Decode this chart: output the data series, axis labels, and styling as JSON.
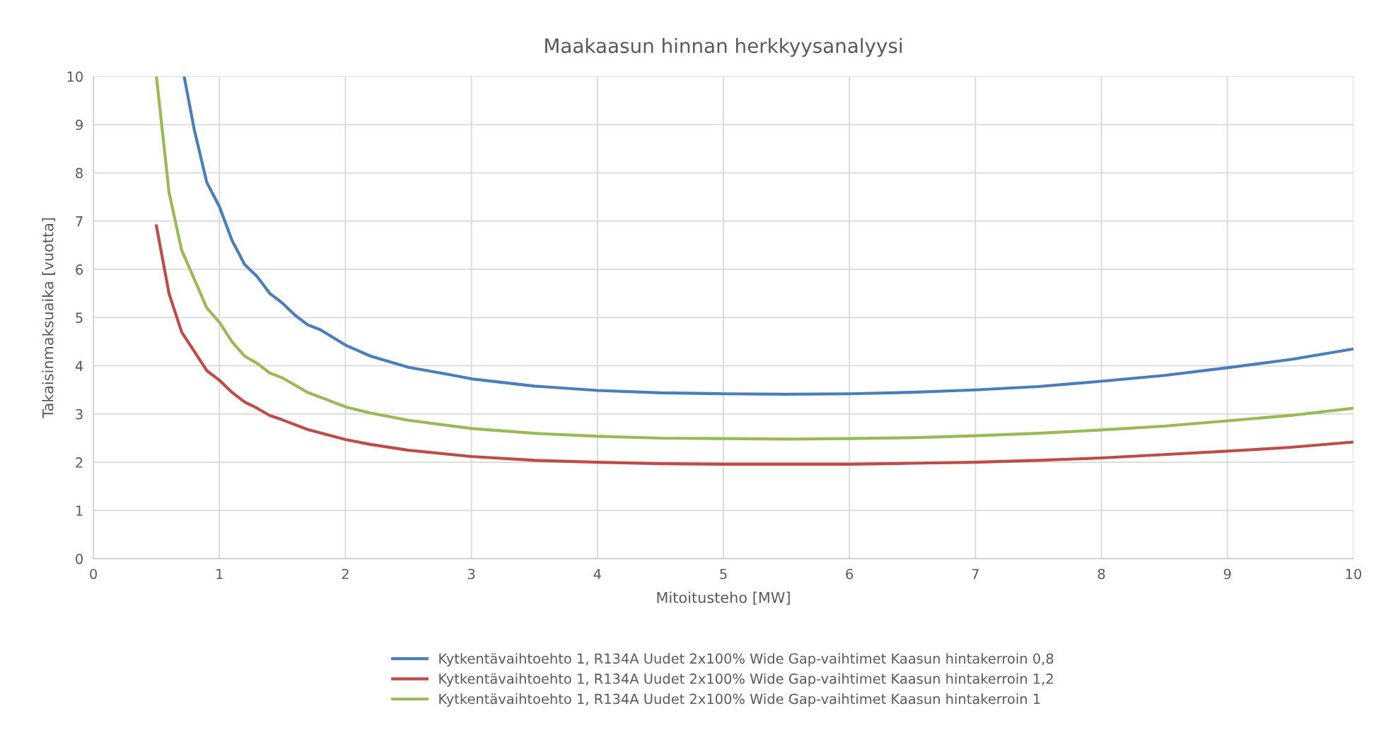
{
  "chart_data": {
    "type": "line",
    "title": "Maakaasun hinnan herkkyysanalyysi",
    "xlabel": "Mitoitusteho [MW]",
    "ylabel": "Takaisinmaksuaika [vuotta]",
    "xlim": [
      0,
      10
    ],
    "xticks": [
      0,
      1,
      2,
      3,
      4,
      5,
      6,
      7,
      8,
      9,
      10
    ],
    "ylim": [
      0,
      10
    ],
    "yticks": [
      0,
      1,
      2,
      3,
      4,
      5,
      6,
      7,
      8,
      9,
      10
    ],
    "grid": true,
    "legend": "bottom",
    "marker": "none",
    "line_style": "solid",
    "series": [
      {
        "name": "Kytkentävaihtoehto 1, R134A Uudet 2x100% Wide Gap-vaihtimet Kaasun hintakerroin 0,8",
        "color": "#4a7ebb",
        "x": [
          0.72,
          0.8,
          0.9,
          1.0,
          1.1,
          1.2,
          1.3,
          1.4,
          1.5,
          1.6,
          1.7,
          1.8,
          2.0,
          2.2,
          2.5,
          2.8,
          3.0,
          3.5,
          4.0,
          4.5,
          5.0,
          5.5,
          6.0,
          6.5,
          7.0,
          7.5,
          8.0,
          8.5,
          9.0,
          9.5,
          10.0
        ],
        "values": [
          10,
          8.9,
          7.8,
          7.3,
          6.6,
          6.1,
          5.85,
          5.5,
          5.3,
          5.05,
          4.85,
          4.75,
          4.43,
          4.2,
          3.97,
          3.83,
          3.73,
          3.58,
          3.49,
          3.44,
          3.42,
          3.41,
          3.42,
          3.45,
          3.5,
          3.57,
          3.68,
          3.8,
          3.96,
          4.13,
          4.35
        ]
      },
      {
        "name": "Kytkentävaihtoehto 1, R134A Uudet 2x100% Wide Gap-vaihtimet Kaasun hintakerroin 1,2",
        "color": "#be4b48",
        "x": [
          0.5,
          0.55,
          0.6,
          0.7,
          0.8,
          0.9,
          1.0,
          1.1,
          1.2,
          1.3,
          1.4,
          1.5,
          1.7,
          2.0,
          2.2,
          2.5,
          3.0,
          3.5,
          4.0,
          4.5,
          5.0,
          5.5,
          6.0,
          6.5,
          7.0,
          7.5,
          8.0,
          8.5,
          9.0,
          9.5,
          10.0
        ],
        "values": [
          6.9,
          6.2,
          5.5,
          4.7,
          4.3,
          3.9,
          3.7,
          3.45,
          3.25,
          3.12,
          2.97,
          2.88,
          2.68,
          2.47,
          2.37,
          2.25,
          2.12,
          2.04,
          2.0,
          1.97,
          1.96,
          1.96,
          1.96,
          1.98,
          2.0,
          2.04,
          2.09,
          2.16,
          2.23,
          2.31,
          2.42
        ]
      },
      {
        "name": "Kytkentävaihtoehto 1, R134A Uudet 2x100% Wide Gap-vaihtimet Kaasun hintakerroin 1",
        "color": "#98b954",
        "x": [
          0.5,
          0.55,
          0.6,
          0.7,
          0.8,
          0.9,
          1.0,
          1.1,
          1.2,
          1.3,
          1.4,
          1.5,
          1.7,
          2.0,
          2.2,
          2.5,
          3.0,
          3.5,
          4.0,
          4.5,
          5.0,
          5.5,
          6.0,
          6.5,
          7.0,
          7.5,
          8.0,
          8.5,
          9.0,
          9.5,
          10.0
        ],
        "values": [
          10,
          8.8,
          7.6,
          6.4,
          5.8,
          5.2,
          4.9,
          4.5,
          4.2,
          4.05,
          3.85,
          3.75,
          3.45,
          3.15,
          3.02,
          2.87,
          2.7,
          2.6,
          2.54,
          2.5,
          2.49,
          2.48,
          2.49,
          2.51,
          2.55,
          2.6,
          2.67,
          2.75,
          2.86,
          2.97,
          3.12
        ]
      }
    ]
  }
}
